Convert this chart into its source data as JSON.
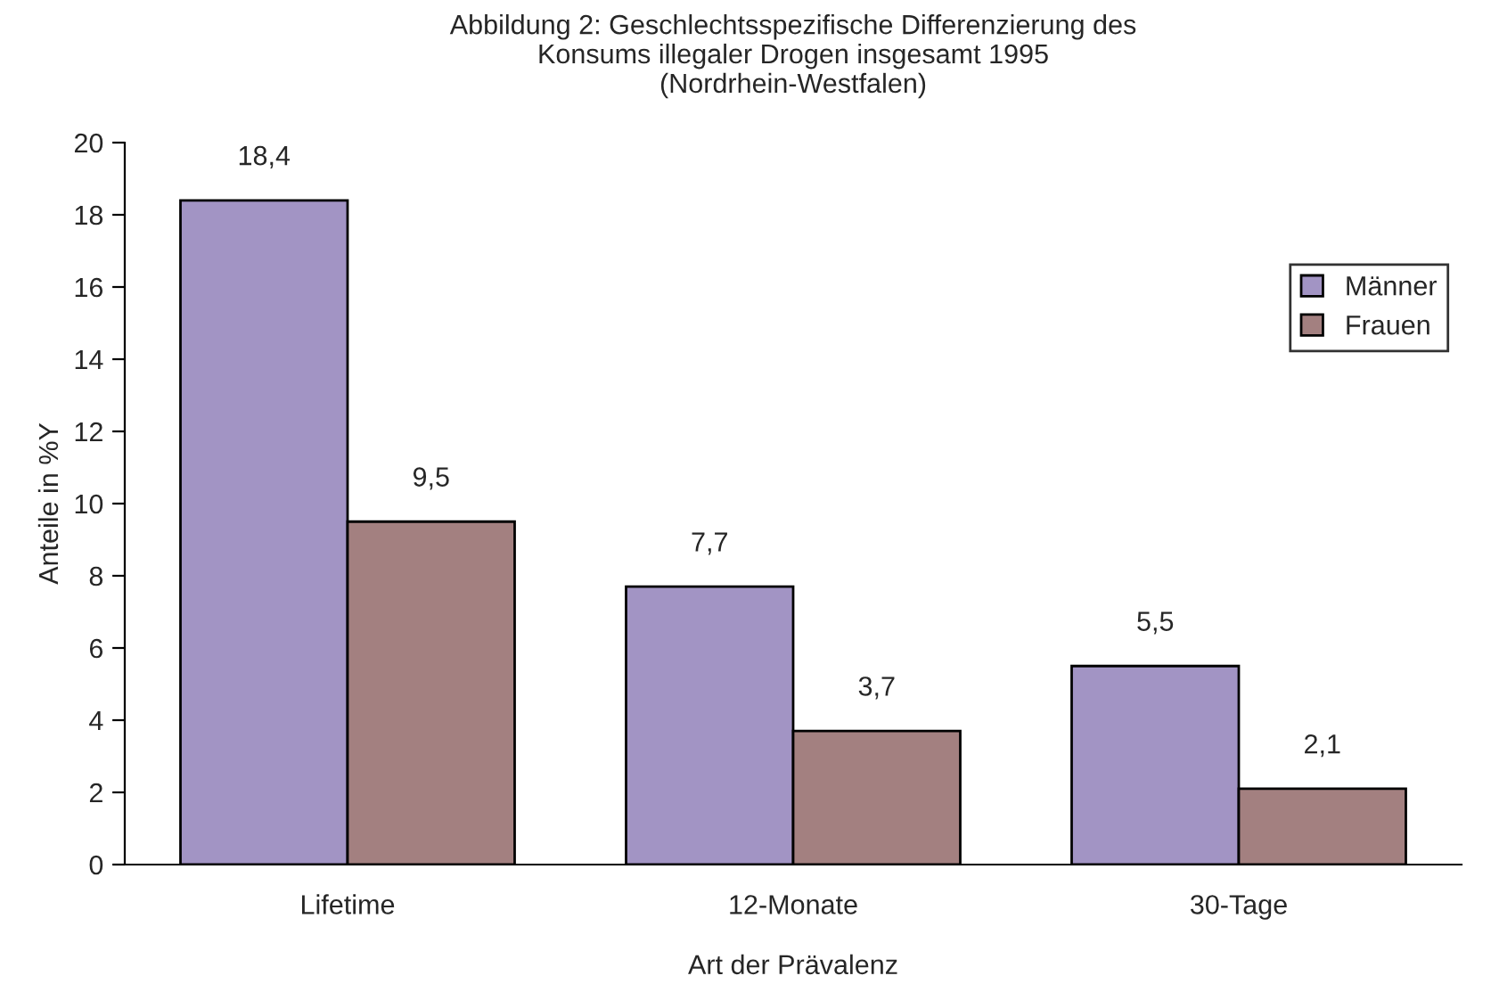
{
  "chart_data": {
    "type": "bar",
    "title": "Abbildung 2: Geschlechtsspezifische Differenzierung des\nKonsums illegaler Drogen insgesamt 1995\n(Nordrhein-Westfalen)",
    "xlabel": "Art der Prävalenz",
    "ylabel": "Anteile in %Y",
    "categories": [
      "Lifetime",
      "12-Monate",
      "30-Tage"
    ],
    "series": [
      {
        "name": "Männer",
        "color": "#a294c4",
        "values": [
          18.4,
          7.7,
          5.5
        ],
        "value_labels": [
          "18,4",
          "7,7",
          "5,5"
        ]
      },
      {
        "name": "Frauen",
        "color": "#a38080",
        "values": [
          9.5,
          3.7,
          2.1
        ],
        "value_labels": [
          "9,5",
          "3,7",
          "2,1"
        ]
      }
    ],
    "ylim": [
      0,
      20
    ],
    "yticks": [
      0,
      2,
      4,
      6,
      8,
      10,
      12,
      14,
      16,
      18,
      20
    ],
    "grid": false,
    "legend": "upper right"
  }
}
